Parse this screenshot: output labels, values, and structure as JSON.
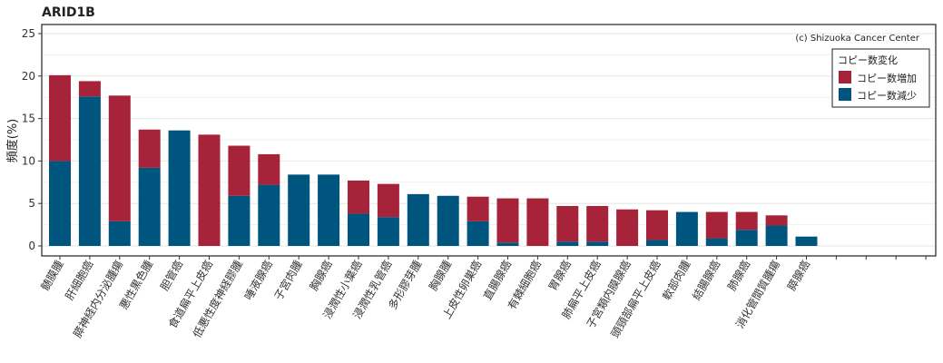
{
  "chart_data": {
    "type": "bar",
    "title": "ARID1B",
    "ylabel": "頻度(%)",
    "xlabel": "",
    "ylim": [
      0,
      25
    ],
    "yticks": [
      0,
      5,
      10,
      15,
      20,
      25
    ],
    "stacked": true,
    "grid": true,
    "legend_position": "top-right",
    "legend_title": "コピー数変化",
    "annotation": "(c) Shizuoka Cancer Center",
    "categories": [
      "髄膜腫",
      "肝細胞癌",
      "膵神経内分泌腫瘍",
      "悪性黒色腫",
      "胆管癌",
      "食道扁平上皮癌",
      "低悪性度神経膠腫",
      "唾液腺癌",
      "子宮肉腫",
      "胸腺癌",
      "浸潤性小葉癌",
      "浸潤性乳管癌",
      "多形膠芽腫",
      "胸腺腫",
      "上皮性卵巣癌",
      "直腸腺癌",
      "有棘細胞癌",
      "胃腺癌",
      "肺扁平上皮癌",
      "子宮類内膜腺癌",
      "頭頸部扁平上皮癌",
      "軟部肉腫",
      "結腸腺癌",
      "肺腺癌",
      "消化管間質腫瘍",
      "膵腺癌",
      "",
      "",
      "",
      ""
    ],
    "series": [
      {
        "name": "コピー数減少",
        "color": "#00557f",
        "values": [
          10.0,
          17.6,
          2.9,
          9.2,
          13.6,
          0,
          5.9,
          7.2,
          8.4,
          8.4,
          3.8,
          3.4,
          6.1,
          5.9,
          2.9,
          0.4,
          0,
          0.5,
          0.5,
          0,
          0.7,
          4.0,
          0.9,
          1.9,
          2.4,
          1.1,
          0,
          0,
          0,
          0
        ]
      },
      {
        "name": "コピー数増加",
        "color": "#a6233a",
        "values": [
          10.1,
          1.8,
          14.8,
          4.5,
          0,
          13.1,
          5.9,
          3.6,
          0,
          0,
          3.9,
          3.9,
          0,
          0,
          2.9,
          5.2,
          5.6,
          4.2,
          4.2,
          4.3,
          3.5,
          0,
          3.1,
          2.1,
          1.2,
          0,
          0,
          0,
          0,
          0
        ]
      }
    ]
  }
}
